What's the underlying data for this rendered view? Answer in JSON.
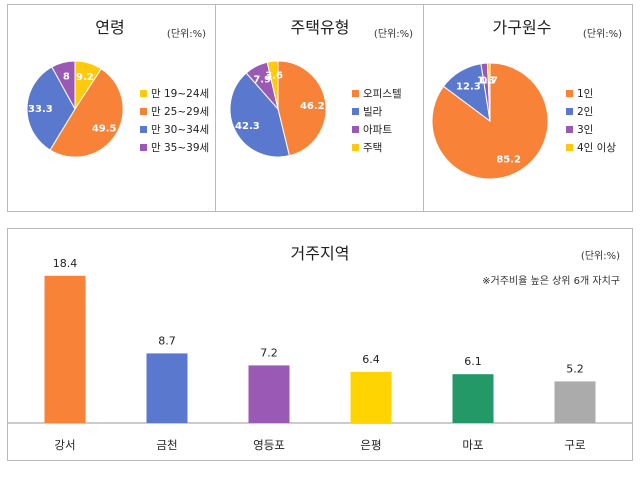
{
  "colors": {
    "orange": "#F98239",
    "blue": "#5B78CF",
    "yellow": "#FFC90E",
    "purple": "#9B59B6",
    "gold": "#FFD400",
    "green": "#229966",
    "gray": "#ABABAB"
  },
  "chart_data": [
    {
      "type": "pie",
      "title": "연령",
      "unit_label": "(단위:%)",
      "legend_position": "right",
      "slices": [
        {
          "label": "만 19~24세",
          "value": 9.2,
          "color": "#FFC90E"
        },
        {
          "label": "만 25~29세",
          "value": 49.5,
          "color": "#F98239"
        },
        {
          "label": "만 30~34세",
          "value": 33.3,
          "color": "#5B78CF"
        },
        {
          "label": "만 35~39세",
          "value": 8,
          "color": "#9B59B6"
        }
      ]
    },
    {
      "type": "pie",
      "title": "주택유형",
      "unit_label": "(단위:%)",
      "legend_position": "right",
      "slices": [
        {
          "label": "오피스텔",
          "value": 46.2,
          "color": "#F98239"
        },
        {
          "label": "빌라",
          "value": 42.3,
          "color": "#5B78CF"
        },
        {
          "label": "아파트",
          "value": 7.9,
          "color": "#9B59B6"
        },
        {
          "label": "주택",
          "value": 3.6,
          "color": "#FFC90E"
        }
      ]
    },
    {
      "type": "pie",
      "title": "가구원수",
      "unit_label": "(단위:%)",
      "legend_position": "right",
      "slices": [
        {
          "label": "1인",
          "value": 85.2,
          "color": "#F98239"
        },
        {
          "label": "2인",
          "value": 12.3,
          "color": "#5B78CF"
        },
        {
          "label": "3인",
          "value": 1.8,
          "color": "#9B59B6"
        },
        {
          "label": "4인 이상",
          "value": 0.7,
          "color": "#FFC90E"
        }
      ]
    },
    {
      "type": "bar",
      "title": "거주지역",
      "unit_label": "(단위:%)",
      "note": "※거주비율 높은 상위 6개 자치구",
      "categories": [
        "강서",
        "금천",
        "영등포",
        "은평",
        "마포",
        "구로"
      ],
      "values": [
        18.4,
        8.7,
        7.2,
        6.4,
        6.1,
        5.2
      ],
      "value_labels": [
        "18.4",
        "8.7",
        "7.2",
        "6.4",
        "6.1",
        "5.2"
      ],
      "colors": [
        "#F98239",
        "#5B78CF",
        "#9B59B6",
        "#FFD400",
        "#229966",
        "#ABABAB"
      ],
      "ylim": [
        0,
        20
      ]
    }
  ]
}
